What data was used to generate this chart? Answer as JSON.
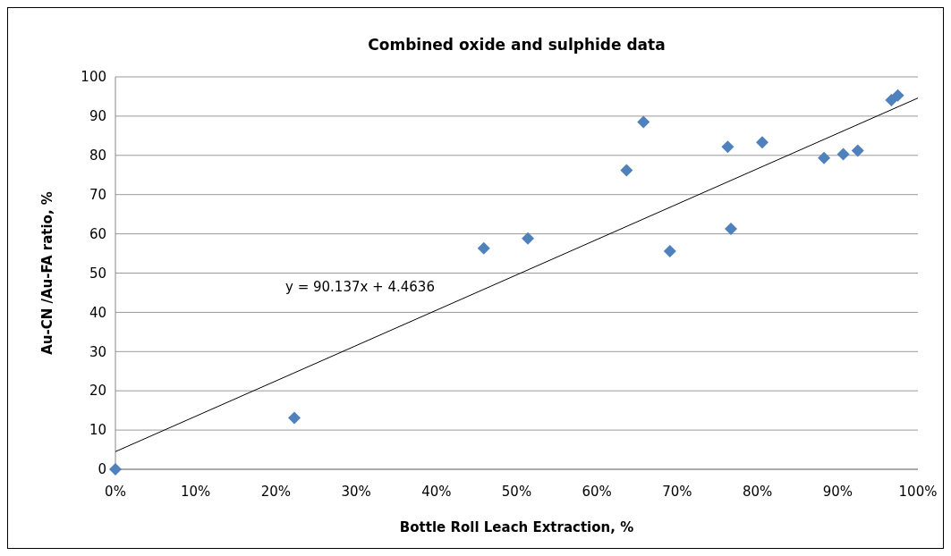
{
  "chart_data": {
    "type": "scatter",
    "title": "Combined oxide and sulphide data",
    "xlabel": "Bottle Roll Leach Extraction, %",
    "ylabel": "Au-CN /Au-FA ratio, %",
    "xlim": [
      0,
      1
    ],
    "xticks": [
      {
        "value": 0,
        "label": "0%"
      },
      {
        "value": 0.1,
        "label": "10%"
      },
      {
        "value": 0.2,
        "label": "20%"
      },
      {
        "value": 0.3,
        "label": "30%"
      },
      {
        "value": 0.4,
        "label": "40%"
      },
      {
        "value": 0.5,
        "label": "50%"
      },
      {
        "value": 0.6,
        "label": "60%"
      },
      {
        "value": 0.7,
        "label": "70%"
      },
      {
        "value": 0.8,
        "label": "80%"
      },
      {
        "value": 0.9,
        "label": "90%"
      },
      {
        "value": 1,
        "label": "100%"
      }
    ],
    "ylim": [
      0,
      100
    ],
    "yticks": [
      0,
      10,
      20,
      30,
      40,
      50,
      60,
      70,
      80,
      90,
      100
    ],
    "grid": "y",
    "series": [
      {
        "marker": "diamond",
        "color": "#4f81bd",
        "x": [
          0.223,
          0.459,
          0.514,
          0.637,
          0.658,
          0.691,
          0.763,
          0.767,
          0.806,
          0.883,
          0.907,
          0.925,
          0.967,
          0.975
        ],
        "values": [
          13.1,
          56.3,
          58.8,
          76.2,
          88.5,
          55.6,
          82.2,
          61.3,
          83.3,
          79.3,
          80.3,
          81.2,
          94.1,
          95.3
        ]
      },
      {
        "marker": "diamond",
        "color": "#4f81bd",
        "x": [
          0
        ],
        "values": [
          0
        ]
      },
      {
        "type": "line",
        "color": "#000000",
        "x": [
          0,
          1
        ],
        "values": [
          4.5,
          94.6
        ]
      }
    ],
    "annotations": [
      "y = 90.137x + 4.4636"
    ]
  }
}
